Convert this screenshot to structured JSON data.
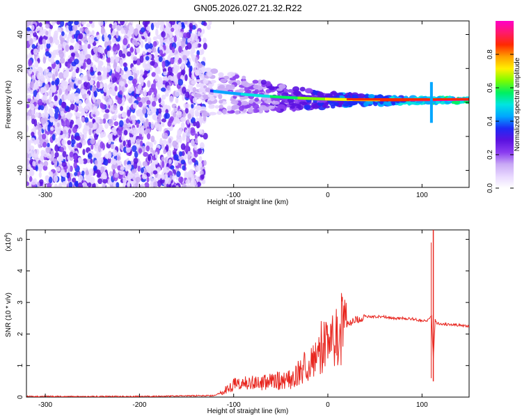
{
  "chart_data": [
    {
      "type": "heatmap",
      "title": "GN05.2026.027.21.32.R22",
      "xlabel": "Height of straight line (km)",
      "ylabel": "Frequency (Hz)",
      "xlim": [
        -320,
        150
      ],
      "ylim": [
        -50,
        48
      ],
      "x_ticks": [
        -300,
        -200,
        -100,
        0,
        100
      ],
      "y_ticks": [
        -40,
        -20,
        0,
        20,
        40
      ],
      "colorbar": {
        "label": "Normalized spectral amplitude",
        "range": [
          0,
          1
        ],
        "ticks": [
          0.0,
          0.2,
          0.4,
          0.6,
          0.8
        ],
        "stops": [
          "#ffffff",
          "#e8d8ff",
          "#c9a9f5",
          "#8a3cf0",
          "#5b12e0",
          "#1e2af5",
          "#00a6ff",
          "#00e5e0",
          "#00f060",
          "#7dfc00",
          "#fff000",
          "#ffa000",
          "#ff2a00",
          "#ff1a6a",
          "#ff00c8"
        ]
      },
      "features": {
        "noise_region_km": [
          -320,
          -130
        ],
        "signal_band_center_hz": 1.5,
        "signal_onset_km": -140,
        "strong_band_km": [
          20,
          150
        ],
        "spike_km": 110
      }
    },
    {
      "type": "line",
      "title": "",
      "xlabel": "Height of straight line (km)",
      "ylabel": "SNR (10 * v/v)",
      "scale_label": "(x10",
      "scale_exponent": "4",
      "xlim": [
        -320,
        150
      ],
      "ylim": [
        0,
        5.3
      ],
      "x_ticks": [
        -300,
        -200,
        -100,
        0,
        100
      ],
      "y_ticks": [
        0,
        1,
        2,
        3,
        4,
        5
      ],
      "color": "#e8261f",
      "series": [
        {
          "name": "SNR",
          "x": [
            -320,
            -200,
            -120,
            -110,
            -100,
            -90,
            -80,
            -60,
            -40,
            -30,
            -20,
            -10,
            0,
            10,
            20,
            30,
            40,
            50,
            60,
            70,
            80,
            90,
            100,
            108,
            110,
            112,
            114,
            116,
            120,
            130,
            140,
            150
          ],
          "y": [
            0.02,
            0.02,
            0.05,
            0.2,
            0.4,
            0.45,
            0.45,
            0.5,
            0.55,
            0.8,
            1.1,
            1.5,
            1.75,
            2.0,
            2.3,
            2.45,
            2.55,
            2.55,
            2.55,
            2.5,
            2.5,
            2.48,
            2.42,
            2.45,
            2.6,
            1.2,
            2.45,
            2.35,
            2.32,
            2.3,
            2.28,
            2.25
          ]
        }
      ],
      "spike": {
        "x": 112,
        "y_max": 5.3,
        "y_min": 0.5
      }
    }
  ]
}
